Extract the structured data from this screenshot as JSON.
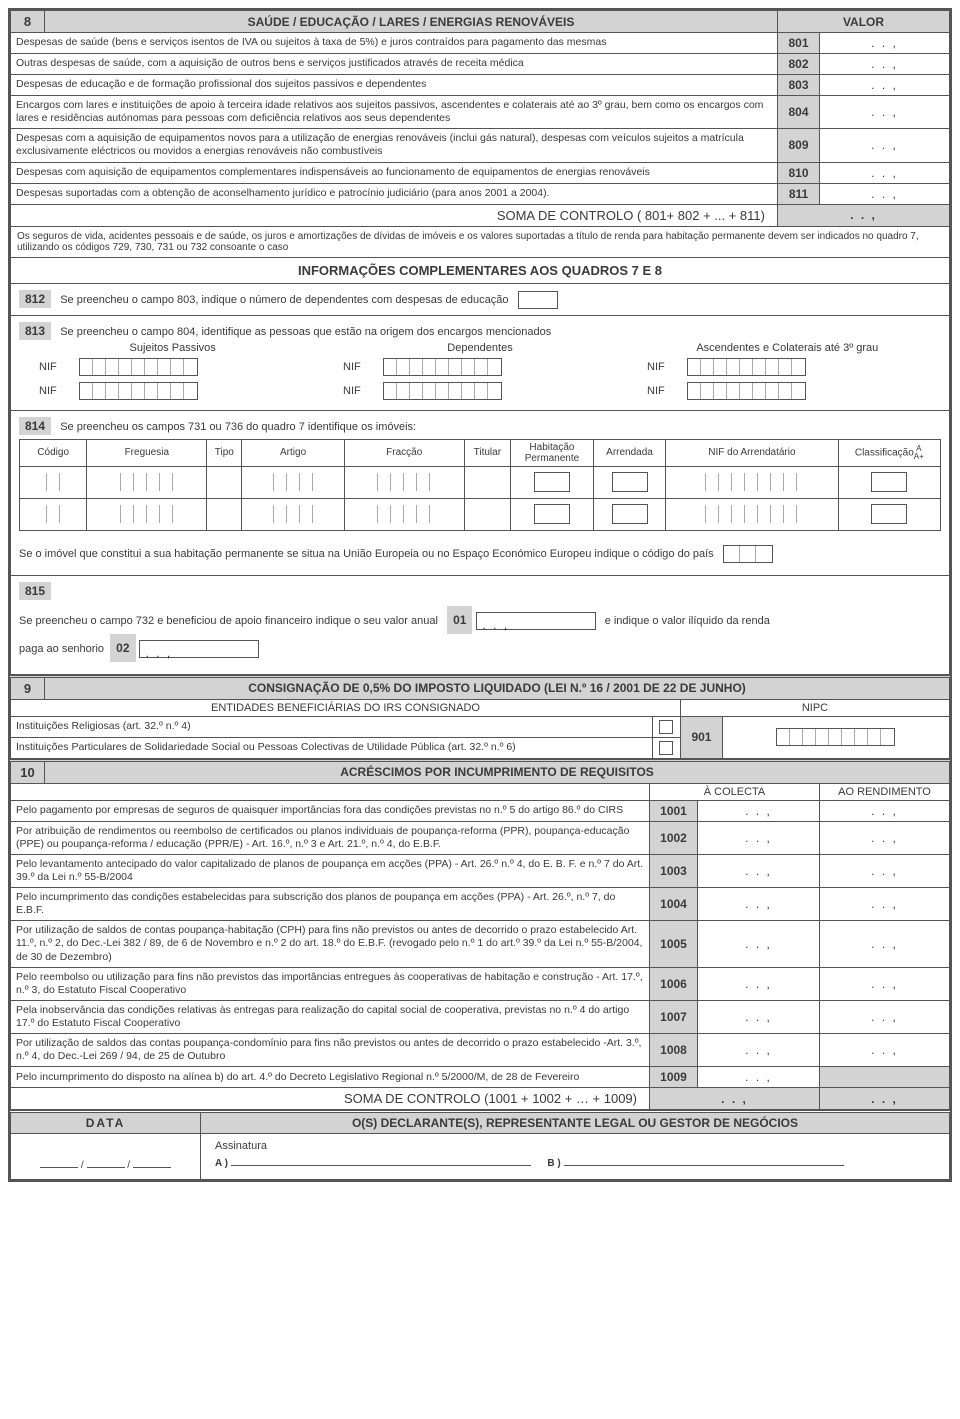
{
  "section8": {
    "num": "8",
    "title": "SAÚDE / EDUCAÇÃO / LARES / ENERGIAS RENOVÁVEIS",
    "valor_hdr": "VALOR",
    "rows": [
      {
        "code": "801",
        "desc": "Despesas de saúde (bens e serviços isentos de IVA ou sujeitos à taxa de 5%) e juros contraídos para pagamento das mesmas"
      },
      {
        "code": "802",
        "desc": "Outras despesas de saúde, com a aquisição de outros bens e serviços justificados através de receita médica"
      },
      {
        "code": "803",
        "desc": "Despesas de educação e de formação profissional dos sujeitos passivos e dependentes"
      },
      {
        "code": "804",
        "desc": "Encargos com lares e instituições de apoio à terceira idade relativos aos sujeitos passivos, ascendentes e colaterais até ao 3º grau, bem como os encargos com lares e residências autónomas para pessoas com deficiência relativos aos  seus dependentes"
      },
      {
        "code": "809",
        "desc": "Despesas com a aquisição de equipamentos novos para a utilização de energias renováveis (inclui gás natural), despesas com veículos sujeitos a matrícula exclusivamente eléctricos ou movidos a energias renováveis não combustíveis"
      },
      {
        "code": "810",
        "desc": "Despesas com aquisição de equipamentos complementares indispensáveis ao funcionamento de equipamentos de energias renováveis"
      },
      {
        "code": "811",
        "desc": "Despesas suportadas com a obtenção de aconselhamento jurídico e patrocínio judiciário (para anos 2001 a 2004)."
      }
    ],
    "soma": "SOMA DE CONTROLO   ( 801+ 802 + ... + 811)",
    "note": "Os seguros de vida, acidentes pessoais e de saúde, os juros e amortizações de dívidas de imóveis e os valores suportadas a título de renda para habitação permanente devem ser indicados no quadro 7, utilizando os códigos 729, 730, 731 ou 732 consoante o caso",
    "info_title": "INFORMAÇÕES COMPLEMENTARES AOS QUADROS 7 E 8",
    "q812": {
      "num": "812",
      "text": "Se preencheu o campo 803, indique o número de dependentes com despesas de educação"
    },
    "q813": {
      "num": "813",
      "text": "Se preencheu o campo 804, identifique as pessoas que estão na origem dos encargos mencionados",
      "col1": "Sujeitos Passivos",
      "col2": "Dependentes",
      "col3": "Ascendentes e Colaterais até 3º grau",
      "nif": "NIF"
    },
    "q814": {
      "num": "814",
      "text": "Se preencheu os campos 731 ou 736 do quadro 7 identifique os imóveis:",
      "cols": [
        "Código",
        "Freguesia",
        "Tipo",
        "Artigo",
        "Fracção",
        "Titular",
        "Habitação Permanente",
        "Arrendada",
        "NIF do Arrendatário",
        "Classificação A A+"
      ],
      "note": "Se o imóvel que constitui a sua habitação permanente se situa na União Europeia ou no Espaço Económico Europeu indique o código do país"
    },
    "q815": {
      "num": "815",
      "text1": "Se preencheu o campo 732 e beneficiou de apoio financeiro indique o seu valor anual",
      "code1": "01",
      "text2": "e indique o valor ilíquido da renda",
      "text3": "paga ao senhorio",
      "code2": "02"
    }
  },
  "section9": {
    "num": "9",
    "title": "CONSIGNAÇÃO DE 0,5% DO IMPOSTO LIQUIDADO (LEI N.º 16 / 2001 DE 22 DE JUNHO)",
    "sub": "ENTIDADES BENEFICIÁRIAS DO IRS CONSIGNADO",
    "nipc": "NIPC",
    "row1": "Instituições Religiosas  (art. 32.º n.º 4)",
    "row2": "Instituições Particulares de Solidariedade Social ou Pessoas Colectivas de Utilidade Pública  (art. 32.º n.º 6)",
    "code": "901"
  },
  "section10": {
    "num": "10",
    "title": "ACRÉSCIMOS POR INCUMPRIMENTO DE REQUISITOS",
    "col1": "À COLECTA",
    "col2": "AO  RENDIMENTO",
    "rows": [
      {
        "code": "1001",
        "desc": "Pelo pagamento por empresas de seguros de quaisquer importâncias fora das condições previstas no n.º 5 do artigo 86.º do CIRS"
      },
      {
        "code": "1002",
        "desc": "Por atribuição de rendimentos ou reembolso de certificados ou planos individuais de poupança-reforma (PPR), poupança-educação (PPE) ou poupança-reforma / educação (PPR/E) - Art. 16.º, n.º 3 e Art. 21.º, n.º 4, do E.B.F."
      },
      {
        "code": "1003",
        "desc": "Pelo levantamento antecipado do valor capitalizado de planos de poupança em acções (PPA) - Art. 26.º n.º 4, do E. B. F. e n.º 7 do Art. 39.º da Lei n.º 55-B/2004"
      },
      {
        "code": "1004",
        "desc": "Pelo incumprimento das condições estabelecidas para subscrição dos planos de poupança em acções  (PPA) - Art. 26.º,  n.º 7, do E.B.F."
      },
      {
        "code": "1005",
        "desc": "Por utilização de saldos de contas poupança-habitação (CPH) para fins não previstos ou antes de decorrido o prazo estabelecido Art. 11.º, n.º 2, do Dec.-Lei 382 / 89, de 6 de Novembro e n.º 2 do art. 18.º do E.B.F. (revogado pelo n.º 1 do art.º 39.º da Lei n.º 55-B/2004, de 30 de Dezembro)"
      },
      {
        "code": "1006",
        "desc": "Pelo reembolso ou utilização para fins não previstos das importâncias entregues às cooperativas de habitação e construção - Art. 17.º, n.º 3, do Estatuto Fiscal Cooperativo"
      },
      {
        "code": "1007",
        "desc": "Pela inobservância das condições relativas às entregas para realização do capital social de cooperativa, previstas no n.º 4 do artigo 17.º do Estatuto Fiscal Cooperativo"
      },
      {
        "code": "1008",
        "desc": "Por utilização de saldos das contas poupança-condomínio para fins não previstos ou antes de decorrido o prazo estabelecido -Art. 3.º, n.º 4, do Dec.-Lei 269 / 94, de 25 de Outubro"
      },
      {
        "code": "1009",
        "desc": "Pelo incumprimento do disposto na alínea b) do art. 4.º do Decreto Legislativo Regional n.º 5/2000/M, de 28 de Fevereiro",
        "greyed": true
      }
    ],
    "soma": "SOMA DE CONTROLO (1001 + 1002 + …  + 1009)"
  },
  "footer": {
    "data": "DATA",
    "decl": "O(S) DECLARANTE(S), REPRESENTANTE LEGAL OU GESTOR DE NEGÓCIOS",
    "ass": "Assinatura",
    "a": "A )",
    "b": "B )"
  },
  "valsep": ".       .        ,"
}
